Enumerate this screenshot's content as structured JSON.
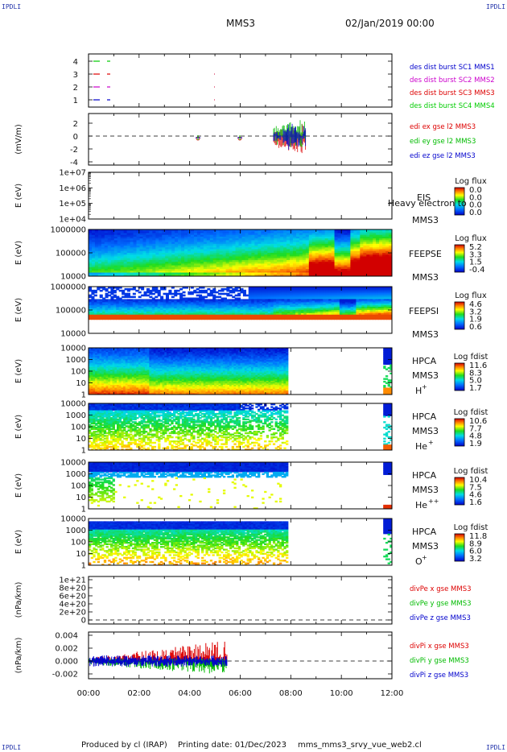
{
  "header": {
    "corner_left_top": "IPDLI",
    "corner_right_top": "IPDLI",
    "corner_left_bottom": "IPDLI",
    "corner_right_bottom": "IPDLI",
    "title": "MMS3",
    "datetime": "02/Jan/2019 00:00"
  },
  "footer": {
    "produced": "Produced by cl (IRAP)",
    "printed": "Printing date: 01/Dec/2023",
    "file": "mms_mms3_srvy_vue_web2.cl"
  },
  "colors": {
    "mms1": "#0000cc",
    "mms2": "#cc00cc",
    "mms3": "#dd0000",
    "mms4": "#00cc00",
    "x": "#dd0000",
    "y": "#00bb00",
    "z": "#0000cc"
  },
  "chart_data": {
    "type": "multi-panel",
    "x_axis": {
      "range": [
        "00:00",
        "12:00"
      ],
      "ticks": [
        "00:00",
        "02:00",
        "04:00",
        "06:00",
        "08:00",
        "10:00",
        "12:00"
      ]
    },
    "panels": [
      {
        "id": "burst",
        "type": "scatter",
        "yticks": [
          "4",
          "3",
          "2",
          "1"
        ],
        "ylabel": "",
        "legend": [
          "des dist burst SC1 MMS1",
          "des dist burst SC2 MMS2",
          "des dist burst SC3 MMS3",
          "des dist burst SC4 MMS4"
        ]
      },
      {
        "id": "edi",
        "type": "line",
        "ylabel": "(mV/m)",
        "yticks": [
          "2",
          "0",
          "-2",
          "-4"
        ],
        "ylim": [
          -5,
          3
        ],
        "legend": [
          "edi ex gse l2 MMS3",
          "edi ey gse l2 MMS3",
          "edi ez gse l2 MMS3"
        ]
      },
      {
        "id": "eis",
        "type": "heatmap",
        "ylabel": "E (eV)",
        "yticks": [
          "1e+07",
          "1e+06",
          "1e+05",
          "1e+04"
        ],
        "instrument": [
          "EIS",
          "MMS3"
        ],
        "overlay_text": "Heavy electron to",
        "cbar_title": "Log flux",
        "cbar_ticks": [
          "0.0",
          "0.0",
          "0.0",
          "0.0"
        ]
      },
      {
        "id": "feepse",
        "type": "heatmap",
        "ylabel": "E (eV)",
        "yticks": [
          "1000000",
          "100000",
          "10000"
        ],
        "instrument": [
          "FEEPSE",
          "MMS3"
        ],
        "cbar_title": "Log flux",
        "cbar_ticks": [
          "5.2",
          "3.3",
          "1.5",
          "-0.4"
        ]
      },
      {
        "id": "feepsi",
        "type": "heatmap",
        "ylabel": "E (eV)",
        "yticks": [
          "1000000",
          "100000",
          "10000"
        ],
        "instrument": [
          "FEEPSI",
          "MMS3"
        ],
        "cbar_title": "Log flux",
        "cbar_ticks": [
          "4.6",
          "3.2",
          "1.9",
          "0.6"
        ]
      },
      {
        "id": "hpca_h",
        "type": "heatmap",
        "ylabel": "E (eV)",
        "yticks": [
          "10000",
          "1000",
          "100",
          "10",
          "1"
        ],
        "instrument": [
          "HPCA",
          "MMS3"
        ],
        "species": "H",
        "charge": "+",
        "cbar_title": "Log fdist",
        "cbar_ticks": [
          "11.6",
          "8.3",
          "5.0",
          "1.7"
        ]
      },
      {
        "id": "hpca_he",
        "type": "heatmap",
        "ylabel": "E (eV)",
        "yticks": [
          "10000",
          "1000",
          "100",
          "10",
          "1"
        ],
        "instrument": [
          "HPCA",
          "MMS3"
        ],
        "species": "He",
        "charge": "+",
        "cbar_title": "Log fdist",
        "cbar_ticks": [
          "10.6",
          "7.7",
          "4.8",
          "1.9"
        ]
      },
      {
        "id": "hpca_hepp",
        "type": "heatmap",
        "ylabel": "E (eV)",
        "yticks": [
          "10000",
          "1000",
          "100",
          "10",
          "1"
        ],
        "instrument": [
          "HPCA",
          "MMS3"
        ],
        "species": "He",
        "charge": "++",
        "cbar_title": "Log fdist",
        "cbar_ticks": [
          "10.4",
          "7.5",
          "4.6",
          "1.6"
        ]
      },
      {
        "id": "hpca_o",
        "type": "heatmap",
        "ylabel": "E (eV)",
        "yticks": [
          "10000",
          "1000",
          "100",
          "10",
          "1"
        ],
        "instrument": [
          "HPCA",
          "MMS3"
        ],
        "species": "O",
        "charge": "+",
        "cbar_title": "Log fdist",
        "cbar_ticks": [
          "11.8",
          "8.9",
          "6.0",
          "3.2"
        ]
      },
      {
        "id": "divpe",
        "type": "line",
        "ylabel": "(nPa/km)",
        "yticks": [
          "1e+21",
          "8e+20",
          "6e+20",
          "4e+20",
          "2e+20",
          "0"
        ],
        "ylim": [
          0,
          1.1e+21
        ],
        "legend": [
          "divPe x gse MMS3",
          "divPe y gse MMS3",
          "divPe z gse MMS3"
        ]
      },
      {
        "id": "divpi",
        "type": "line",
        "ylabel": "(nPa/km)",
        "yticks": [
          "0.004",
          "0.002",
          "0.000",
          "-0.002"
        ],
        "ylim": [
          -0.003,
          0.004
        ],
        "legend": [
          "divPi x gse MMS3",
          "divPi y gse MMS3",
          "divPi z gse MMS3"
        ]
      }
    ]
  }
}
